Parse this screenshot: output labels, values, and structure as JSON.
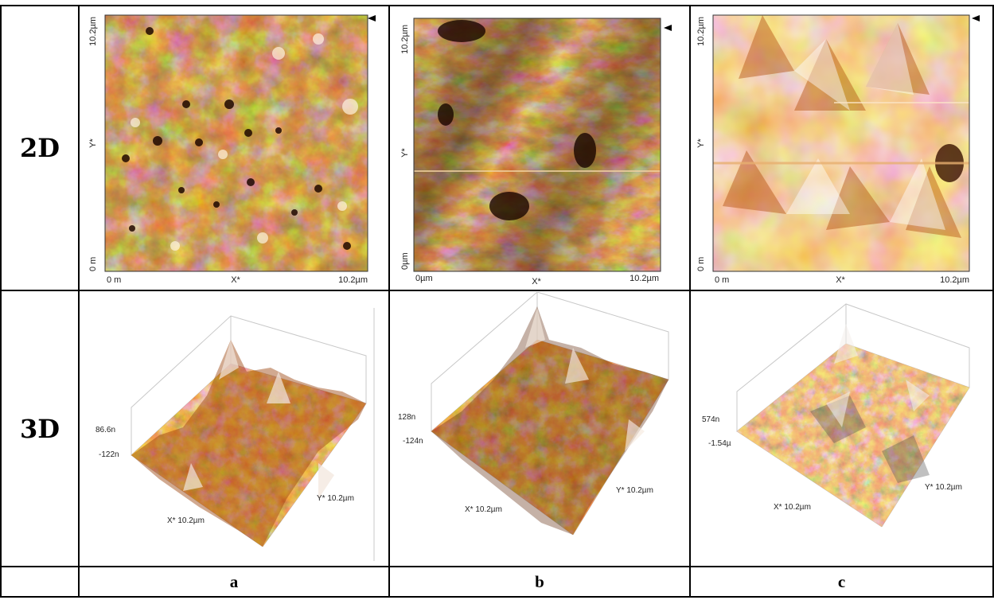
{
  "rows": [
    {
      "label": "2D"
    },
    {
      "label": "3D"
    },
    {
      "label": ""
    }
  ],
  "panels": [
    {
      "id": "a",
      "caption": "a",
      "map2d": {
        "x_start": "0 m",
        "x_label": "X*",
        "x_end": "10.2µm",
        "y_start": "0 m",
        "y_label": "Y*",
        "y_end": "10.2µm"
      },
      "surface3d": {
        "z_max": "86.6n",
        "z_min": "-122n",
        "x_label": "X* 10.2µm",
        "y_label": "Y* 10.2µm"
      },
      "colors": {
        "dark": "#5a2000",
        "mid": "#c05a10",
        "light": "#f4c896"
      }
    },
    {
      "id": "b",
      "caption": "b",
      "map2d": {
        "x_start": "0µm",
        "x_label": "X*",
        "x_end": "10.2µm",
        "y_start": "0µm",
        "y_label": "Y*",
        "y_end": "10.2µm"
      },
      "surface3d": {
        "z_max": "128n",
        "z_min": "-124n",
        "x_label": "X* 10.2µm",
        "y_label": "Y* 10.2µm"
      },
      "colors": {
        "dark": "#3a1200",
        "mid": "#c8661c",
        "light": "#f8dcb4"
      }
    },
    {
      "id": "c",
      "caption": "c",
      "map2d": {
        "x_start": "0 m",
        "x_label": "X*",
        "x_end": "10.2µm",
        "y_start": "0 m",
        "y_label": "Y*",
        "y_end": "10.2µm"
      },
      "surface3d": {
        "z_max": "574n",
        "z_min": "-1.54µ",
        "x_label": "X* 10.2µm",
        "y_label": "Y* 10.2µm"
      },
      "colors": {
        "dark": "#6a2800",
        "mid": "#e0883a",
        "light": "#fdf0e0"
      }
    }
  ]
}
